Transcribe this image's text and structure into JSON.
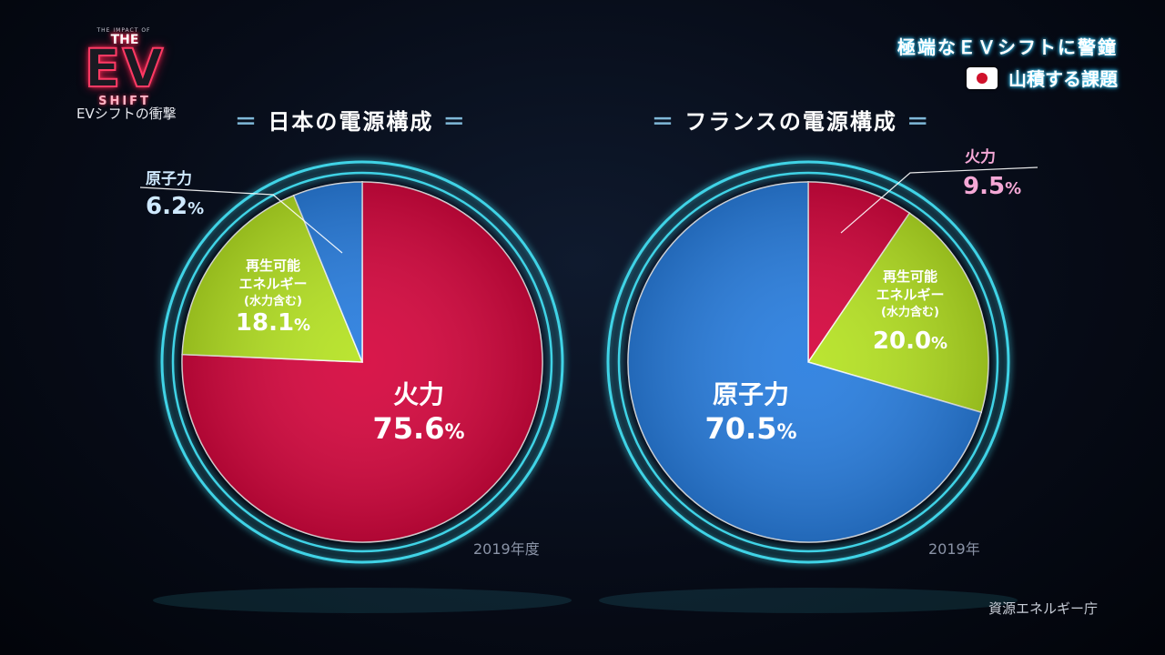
{
  "logo": {
    "small": "THE IMPACT OF",
    "the": "THE",
    "ev": "EV",
    "shift": "SHIFT",
    "caption": "EVシフトの衝撃"
  },
  "headline": {
    "line1": "極端なＥＶシフトに警鐘",
    "line2": "山積する課題",
    "flag_icon": "japan-flag-icon"
  },
  "source": "資源エネルギー庁",
  "colors": {
    "thermal": "#d6083f",
    "renewable": "#b6e324",
    "nuclear": "#2a7fe0",
    "ring": "#3fd3e6",
    "pink_label": "#f5a8d6",
    "blue_label": "#bfe4ff"
  },
  "chart_data": [
    {
      "type": "pie",
      "title_dash_left": "＝",
      "title": "日本の電源構成",
      "title_dash_right": "＝",
      "year": "2019年度",
      "slices": [
        {
          "key": "thermal",
          "label": "火力",
          "value": 75.6,
          "display": "75.6",
          "unit": "%"
        },
        {
          "key": "renewable",
          "label_lines": [
            "再生可能",
            "エネルギー",
            "(水力含む)"
          ],
          "value": 18.1,
          "display": "18.1",
          "unit": "%"
        },
        {
          "key": "nuclear",
          "label": "原子力",
          "value": 6.2,
          "display": "6.2",
          "unit": "%"
        }
      ]
    },
    {
      "type": "pie",
      "title_dash_left": "＝",
      "title": "フランスの電源構成",
      "title_dash_right": "＝",
      "year": "2019年",
      "slices": [
        {
          "key": "thermal",
          "label": "火力",
          "value": 9.5,
          "display": "9.5",
          "unit": "%"
        },
        {
          "key": "renewable",
          "label_lines": [
            "再生可能",
            "エネルギー",
            "(水力含む)"
          ],
          "value": 20.0,
          "display": "20.0",
          "unit": "%"
        },
        {
          "key": "nuclear",
          "label": "原子力",
          "value": 70.5,
          "display": "70.5",
          "unit": "%"
        }
      ]
    }
  ]
}
